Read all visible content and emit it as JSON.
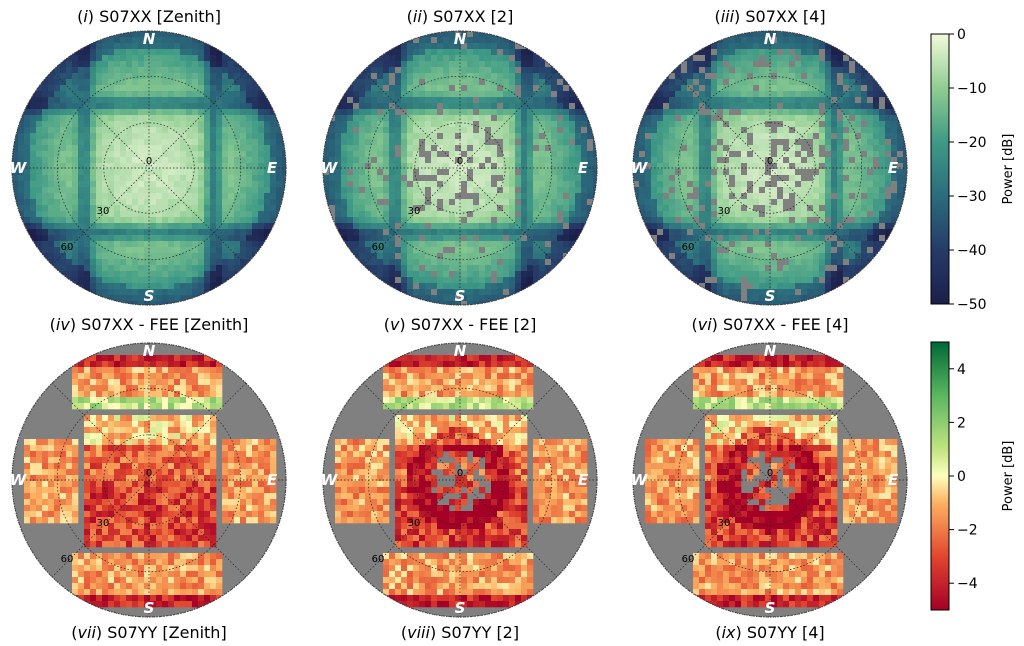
{
  "chart_data": [
    {
      "type": "heatmap",
      "projection": "polar zenith-angle sky map",
      "rows": [
        {
          "name": "pattern",
          "colormap": "YlGnBu_r",
          "vmin": -50,
          "vmax": 0,
          "colorbar": {
            "label": "Power [dB]",
            "ticks": [
              0,
              -10,
              -20,
              -30,
              -40,
              -50
            ],
            "tick_labels": [
              "0",
              "−10",
              "−20",
              "−30",
              "−40",
              "−50"
            ]
          },
          "panels": [
            {
              "title_num": "i",
              "title_rest": " S07XX [Zenith]",
              "pointing": "Zenith"
            },
            {
              "title_num": "ii",
              "title_rest": " S07XX [2]",
              "pointing": "2"
            },
            {
              "title_num": "iii",
              "title_rest": " S07XX [4]",
              "pointing": "4"
            }
          ]
        },
        {
          "name": "residual",
          "colormap": "RdYlGn",
          "vmin": -5,
          "vmax": 5,
          "colorbar": {
            "label": "Power [dB]",
            "ticks": [
              4,
              2,
              0,
              -2,
              -4
            ],
            "tick_labels": [
              "4",
              "2",
              "0",
              "−2",
              "−4"
            ]
          },
          "panels": [
            {
              "title_num": "iv",
              "title_rest": " S07XX - FEE [Zenith]",
              "pointing": "Zenith"
            },
            {
              "title_num": "v",
              "title_rest": " S07XX - FEE [2]",
              "pointing": "2"
            },
            {
              "title_num": "vi",
              "title_rest": " S07XX - FEE [4]",
              "pointing": "4"
            }
          ]
        }
      ],
      "bottom_titles": [
        {
          "title_num": "vii",
          "title_rest": " S07YY [Zenith]"
        },
        {
          "title_num": "viii",
          "title_rest": " S07YY [2]"
        },
        {
          "title_num": "ix",
          "title_rest": " S07YY [4]"
        }
      ],
      "compass": {
        "north": "N",
        "south": "S",
        "east": "E",
        "west": "W"
      },
      "radial_ticks": [
        "0",
        "30",
        "60"
      ],
      "grid": true,
      "masked_color": "#808080"
    }
  ]
}
